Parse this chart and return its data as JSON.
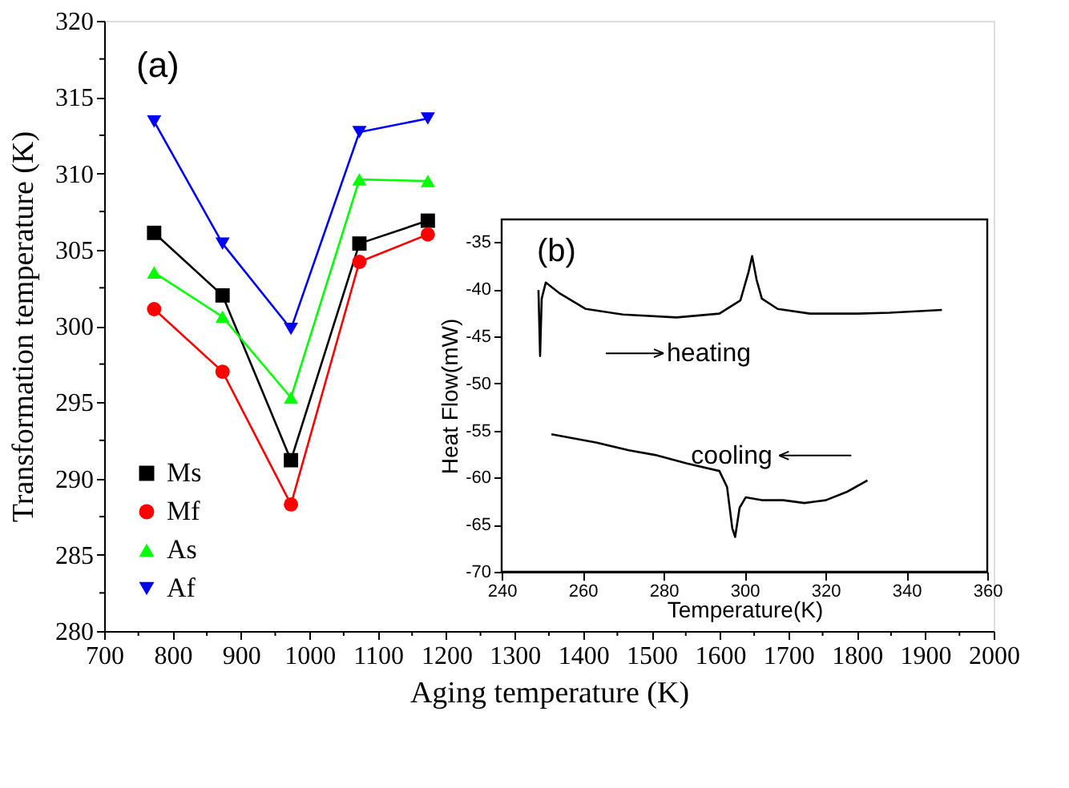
{
  "chart_data": [
    {
      "type": "line",
      "xlabel": "Aging temperature (K)",
      "ylabel": "Transformation temperature (K)",
      "annotations": [
        "(a)"
      ],
      "x": [
        773,
        873,
        973,
        1073,
        1173
      ],
      "series": [
        {
          "name": "Ms",
          "color": "#000000",
          "marker": "square",
          "values": [
            306.1,
            302.0,
            291.2,
            305.4,
            306.9
          ]
        },
        {
          "name": "Mf",
          "color": "#ff0000",
          "marker": "circle",
          "values": [
            301.1,
            297.0,
            288.3,
            304.2,
            306.0
          ]
        },
        {
          "name": "As",
          "color": "#00ff00",
          "marker": "triangle",
          "values": [
            303.5,
            300.6,
            295.3,
            309.6,
            309.5
          ]
        },
        {
          "name": "Af",
          "color": "#0000ff",
          "marker": "triangle-down",
          "values": [
            313.4,
            305.4,
            299.8,
            312.7,
            313.6
          ]
        }
      ],
      "xlim": [
        700,
        2000
      ],
      "ylim": [
        280,
        320
      ],
      "xticks": [
        700,
        {
          "value": 750,
          "label": null
        },
        800,
        {
          "value": 850,
          "label": null
        },
        900,
        {
          "value": 950,
          "label": null
        },
        1000,
        {
          "value": 1050,
          "label": null
        },
        1100,
        {
          "value": 1150,
          "label": null
        },
        1200,
        {
          "value": 1250,
          "label": null
        },
        1300,
        {
          "value": 1350,
          "label": null
        },
        1400,
        {
          "value": 1450,
          "label": null
        },
        1500,
        {
          "value": 1550,
          "label": null
        },
        1600,
        {
          "value": 1650,
          "label": null
        },
        1700,
        {
          "value": 1750,
          "label": null
        },
        1800,
        {
          "value": 1850,
          "label": null
        },
        1900,
        {
          "value": 1950,
          "label": null
        },
        2000
      ],
      "yticks": [
        280,
        {
          "value": 282.5,
          "label": null
        },
        285,
        {
          "value": 287.5,
          "label": null
        },
        290,
        {
          "value": 292.5,
          "label": null
        },
        295,
        {
          "value": 297.5,
          "label": null
        },
        300,
        {
          "value": 302.5,
          "label": null
        },
        305,
        {
          "value": 307.5,
          "label": null
        },
        310,
        {
          "value": 312.5,
          "label": null
        },
        315,
        {
          "value": 317.5,
          "label": null
        },
        320
      ],
      "grid": false,
      "legend": "bottom left"
    },
    {
      "type": "line",
      "xlabel": "Temperature(K)",
      "ylabel": "Heat Flow(mW)",
      "annotations": [
        "(b)",
        "heating",
        "cooling"
      ],
      "series": [
        {
          "color": "#000000",
          "x": [
            249.1,
            249.5,
            249.9,
            250.9,
            254.2,
            260.8,
            270,
            283.2,
            293.8,
            299,
            301,
            301.9,
            303,
            304.3,
            308.2,
            316.2,
            328,
            335.9,
            348.8
          ],
          "values": [
            -40.1,
            -47.1,
            -41,
            -39.3,
            -40.4,
            -42.1,
            -42.7,
            -43.0,
            -42.6,
            -41.2,
            -38.2,
            -36.5,
            -39,
            -41,
            -42.1,
            -42.6,
            -42.6,
            -42.5,
            -42.2
          ]
        },
        {
          "color": "#000000",
          "x": [
            252.3,
            263.5,
            271.4,
            277.9,
            285.8,
            293.8,
            295.7,
            297.0,
            297.7,
            298.8,
            300.3,
            304.3,
            309.6,
            314.8,
            320.1,
            325.4,
            330.4
          ],
          "values": [
            -55.4,
            -56.3,
            -57.1,
            -57.6,
            -58.5,
            -59.3,
            -61,
            -65.4,
            -66.3,
            -63.2,
            -62.1,
            -62.4,
            -62.4,
            -62.7,
            -62.4,
            -61.5,
            -60.3
          ]
        }
      ],
      "xlim": [
        240,
        360
      ],
      "ylim": [
        -70,
        -32.6
      ],
      "xticks": [
        240,
        260,
        280,
        300,
        320,
        340,
        360
      ],
      "yticks": [
        -70,
        -65,
        -60,
        -55,
        -50,
        -45,
        -40,
        -35
      ],
      "grid": false
    }
  ]
}
